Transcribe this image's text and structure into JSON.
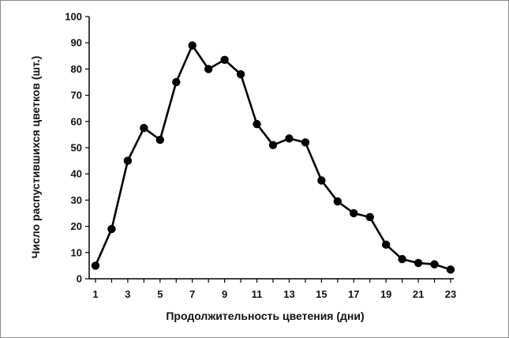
{
  "chart_data": {
    "type": "line",
    "title": "",
    "xlabel": "Продолжительность цветения (дни)",
    "ylabel": "Число распустившихся цветков (шт.)",
    "x": [
      1,
      2,
      3,
      4,
      5,
      6,
      7,
      8,
      9,
      10,
      11,
      12,
      13,
      14,
      15,
      16,
      17,
      18,
      19,
      20,
      21,
      22,
      23
    ],
    "series": [
      {
        "values": [
          5,
          19,
          45,
          57.5,
          53,
          75,
          89,
          80,
          83.5,
          78,
          59,
          51,
          53.5,
          52,
          37.5,
          29.5,
          25,
          23.5,
          13,
          7.5,
          6,
          5.5,
          3.5
        ]
      }
    ],
    "xlim": [
      1,
      23
    ],
    "ylim": [
      0,
      100
    ],
    "x_tick_labels": [
      "1",
      "3",
      "5",
      "7",
      "9",
      "11",
      "13",
      "15",
      "17",
      "19",
      "21",
      "23"
    ],
    "y_tick_labels": [
      "0",
      "10",
      "20",
      "30",
      "40",
      "50",
      "60",
      "70",
      "80",
      "90",
      "100"
    ],
    "grid": false,
    "legend": "none",
    "colors": {
      "line": "#000000",
      "marker": "#000000",
      "axis": "#000000"
    }
  }
}
